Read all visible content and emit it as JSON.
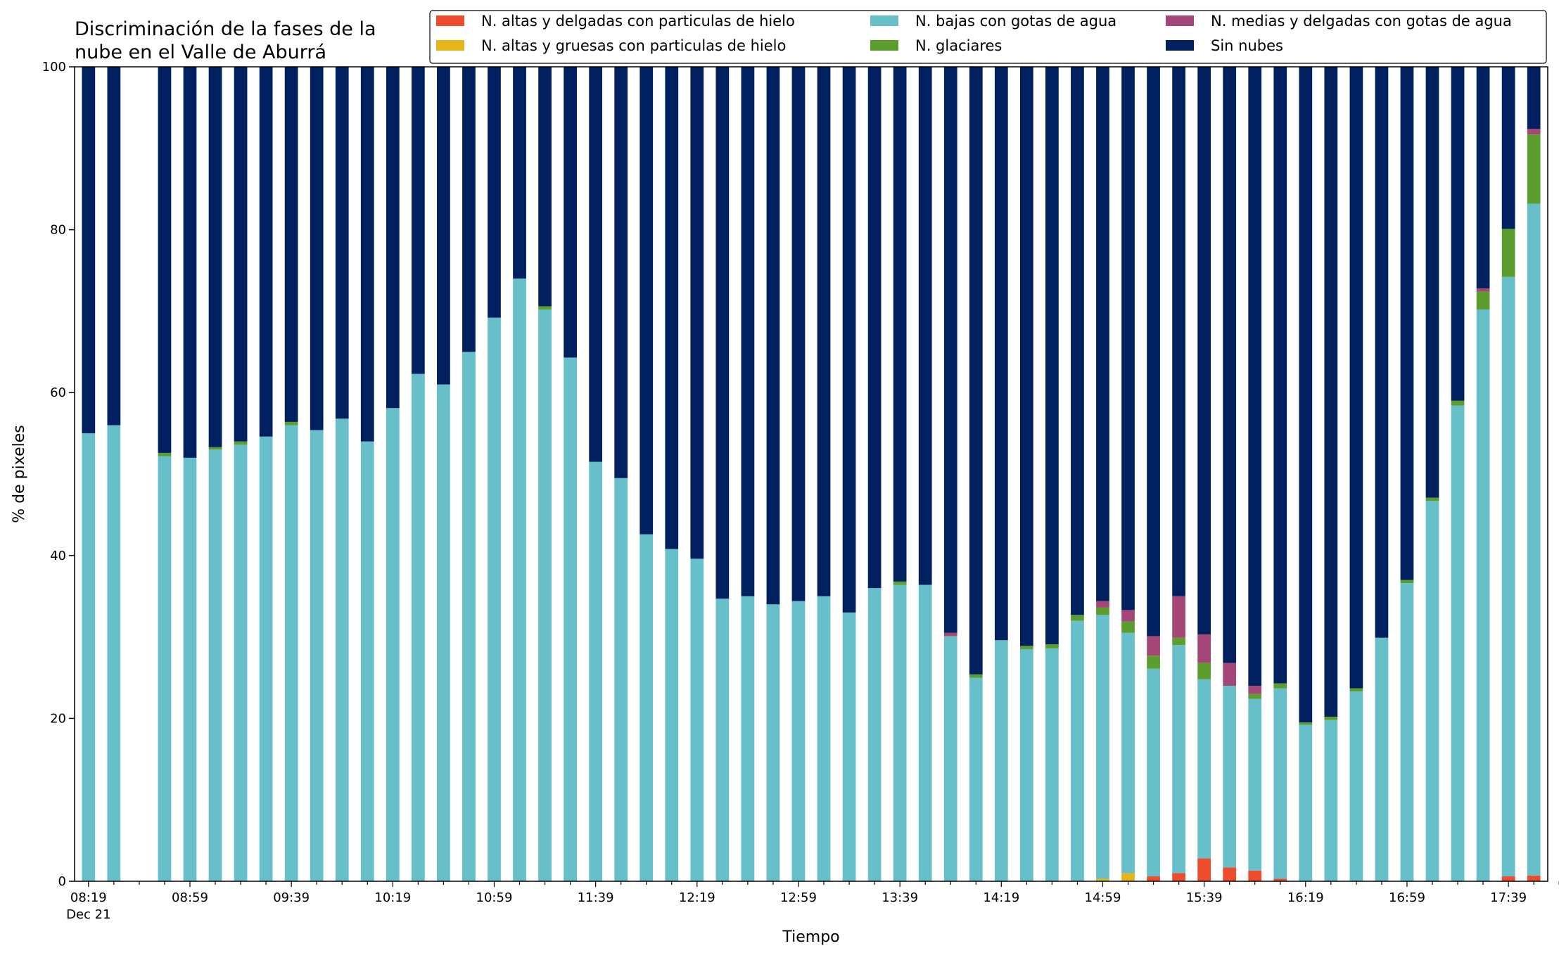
{
  "chart_data": {
    "type": "bar",
    "stacked": true,
    "title_lines": [
      "Discriminación de la fases de la",
      "nube en el Valle de Aburrá"
    ],
    "xlabel": "Tiempo",
    "ylabel": "% de pixeles",
    "ylim": [
      0,
      100
    ],
    "yticks": [
      0,
      20,
      40,
      60,
      80,
      100
    ],
    "grid": false,
    "legend_position": "top-right",
    "x": [
      "08:19",
      "08:29",
      "08:39",
      "08:49",
      "08:59",
      "09:09",
      "09:19",
      "09:29",
      "09:39",
      "09:49",
      "09:59",
      "10:09",
      "10:19",
      "10:29",
      "10:39",
      "10:49",
      "10:59",
      "11:09",
      "11:19",
      "11:29",
      "11:39",
      "11:49",
      "11:59",
      "12:09",
      "12:19",
      "12:29",
      "12:39",
      "12:49",
      "12:59",
      "13:09",
      "13:19",
      "13:29",
      "13:39",
      "13:49",
      "13:59",
      "14:09",
      "14:19",
      "14:29",
      "14:39",
      "14:49",
      "14:59",
      "15:09",
      "15:19",
      "15:29",
      "15:39",
      "15:49",
      "15:59",
      "16:09",
      "16:19",
      "16:29",
      "16:39",
      "16:49",
      "16:59",
      "17:09",
      "17:19",
      "17:29",
      "17:39",
      "17:49"
    ],
    "x_tick_labels": [
      {
        "label": "08:19",
        "sublabel": "Dec 21"
      },
      {
        "label": "08:59",
        "sublabel": ""
      },
      {
        "label": "09:39",
        "sublabel": ""
      },
      {
        "label": "10:19",
        "sublabel": ""
      },
      {
        "label": "10:59",
        "sublabel": ""
      },
      {
        "label": "11:39",
        "sublabel": ""
      },
      {
        "label": "12:19",
        "sublabel": ""
      },
      {
        "label": "12:59",
        "sublabel": ""
      },
      {
        "label": "13:39",
        "sublabel": ""
      },
      {
        "label": "14:19",
        "sublabel": ""
      },
      {
        "label": "14:59",
        "sublabel": ""
      },
      {
        "label": "15:39",
        "sublabel": ""
      },
      {
        "label": "16:19",
        "sublabel": ""
      },
      {
        "label": "16:59",
        "sublabel": ""
      },
      {
        "label": "17:39",
        "sublabel": ""
      }
    ],
    "series": [
      {
        "name": "N. altas y delgadas con particulas de hielo",
        "color": "#ed4d2d",
        "values": [
          0,
          0,
          null,
          0,
          0,
          0,
          0,
          0,
          0,
          0,
          0,
          0,
          0,
          0,
          0,
          0,
          0,
          0,
          0,
          0,
          0,
          0,
          0,
          0,
          0,
          0,
          0,
          0,
          0,
          0,
          0,
          0,
          0,
          0,
          0,
          0,
          0,
          0,
          0,
          0,
          0,
          0,
          0.6,
          1.0,
          2.8,
          1.7,
          1.3,
          0.3,
          0,
          0,
          0,
          0,
          0,
          0,
          0,
          0,
          0.6,
          0.7
        ]
      },
      {
        "name": "N. altas y gruesas con particulas de hielo",
        "color": "#e6b51c",
        "values": [
          0,
          0,
          null,
          0,
          0,
          0,
          0,
          0,
          0,
          0,
          0,
          0,
          0,
          0,
          0,
          0,
          0,
          0,
          0,
          0,
          0,
          0,
          0,
          0,
          0,
          0,
          0,
          0,
          0,
          0,
          0,
          0,
          0,
          0,
          0,
          0,
          0,
          0,
          0,
          0,
          0.3,
          1.0,
          0,
          0,
          0,
          0,
          0,
          0,
          0,
          0,
          0,
          0,
          0,
          0,
          0,
          0,
          0,
          0
        ]
      },
      {
        "name": "N. bajas con gotas de agua",
        "color": "#66bfc9",
        "values": [
          55.0,
          56.0,
          null,
          52.2,
          52.0,
          53.0,
          53.6,
          54.6,
          56.0,
          55.4,
          56.8,
          54.0,
          58.1,
          62.3,
          61.0,
          65.0,
          69.2,
          74.0,
          70.2,
          64.3,
          51.5,
          49.5,
          42.6,
          40.8,
          39.6,
          34.7,
          35.0,
          34.0,
          34.4,
          35.0,
          33.0,
          36.0,
          36.4,
          36.4,
          30.1,
          25.0,
          29.6,
          28.5,
          28.6,
          32.0,
          32.4,
          29.5,
          25.5,
          28.0,
          22.0,
          22.3,
          21.1,
          23.4,
          19.2,
          19.8,
          23.3,
          29.9,
          36.6,
          46.7,
          58.4,
          70.2,
          73.6,
          82.5
        ]
      },
      {
        "name": "N. glaciares",
        "color": "#5b9e2d",
        "values": [
          0,
          0,
          null,
          0.4,
          0,
          0.3,
          0.4,
          0,
          0.4,
          0,
          0,
          0,
          0,
          0,
          0,
          0,
          0,
          0,
          0.4,
          0,
          0,
          0,
          0,
          0,
          0,
          0,
          0,
          0,
          0,
          0,
          0,
          0,
          0.4,
          0,
          0,
          0.4,
          0,
          0.4,
          0.5,
          0.7,
          0.9,
          1.4,
          1.6,
          0.9,
          2.0,
          0,
          0.6,
          0.6,
          0.3,
          0.4,
          0.4,
          0,
          0.4,
          0.4,
          0.6,
          2.2,
          5.9,
          8.5
        ]
      },
      {
        "name": "N. medias y delgadas con gotas de agua",
        "color": "#a44777",
        "values": [
          0,
          0,
          null,
          0,
          0,
          0,
          0,
          0,
          0,
          0,
          0,
          0,
          0,
          0,
          0,
          0,
          0,
          0,
          0,
          0,
          0,
          0,
          0,
          0,
          0,
          0,
          0,
          0,
          0,
          0,
          0,
          0,
          0,
          0,
          0.4,
          0,
          0,
          0,
          0,
          0,
          0.8,
          1.4,
          2.4,
          5.1,
          3.5,
          2.8,
          1.0,
          0,
          0,
          0,
          0,
          0,
          0,
          0,
          0,
          0.4,
          0,
          0.7
        ]
      },
      {
        "name": "Sin nubes",
        "color": "#00205f",
        "values": [
          45.0,
          44.0,
          null,
          47.4,
          48.0,
          46.7,
          46.0,
          45.4,
          43.6,
          44.6,
          43.2,
          46.0,
          41.9,
          37.7,
          39.0,
          35.0,
          30.8,
          26.0,
          29.4,
          35.7,
          48.5,
          50.5,
          57.4,
          59.2,
          60.4,
          65.3,
          65.0,
          66.0,
          65.6,
          65.0,
          67.0,
          64.0,
          63.2,
          63.6,
          69.5,
          74.6,
          70.4,
          71.1,
          70.9,
          67.3,
          65.6,
          66.7,
          69.9,
          65.0,
          69.7,
          73.2,
          76.0,
          75.7,
          80.5,
          79.8,
          76.3,
          70.1,
          63.0,
          52.9,
          41.0,
          27.2,
          19.9,
          7.6
        ]
      }
    ],
    "legend": [
      {
        "name": "N. altas y delgadas con particulas de hielo",
        "color": "#ed4d2d"
      },
      {
        "name": "N. altas y gruesas con particulas de hielo",
        "color": "#e6b51c"
      },
      {
        "name": "N. bajas con gotas de agua",
        "color": "#66bfc9"
      },
      {
        "name": "N. glaciares",
        "color": "#5b9e2d"
      },
      {
        "name": "N. medias y delgadas con gotas de agua",
        "color": "#a44777"
      },
      {
        "name": "Sin nubes",
        "color": "#00205f"
      }
    ]
  }
}
